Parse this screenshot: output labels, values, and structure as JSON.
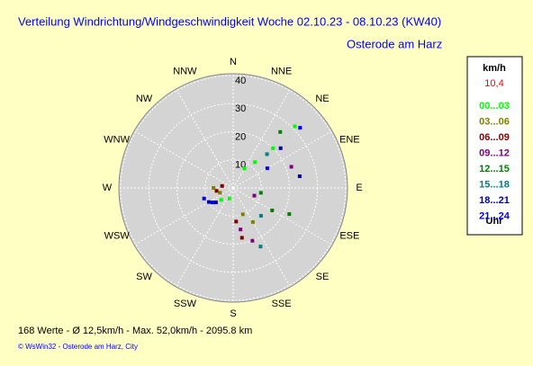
{
  "chart_data": {
    "type": "polar-scatter",
    "title": "Verteilung Windrichtung/Windgeschwindigkeit  Woche 02.10.23 - 08.10.23 (KW40)",
    "subtitle": "Osterode am Harz",
    "directions": [
      "N",
      "NNE",
      "NE",
      "ENE",
      "E",
      "ESE",
      "SE",
      "SSE",
      "S",
      "SSW",
      "SW",
      "WSW",
      "W",
      "WNW",
      "NW",
      "NNW"
    ],
    "rlim": [
      0,
      40
    ],
    "rticks": [
      10,
      20,
      30,
      40
    ],
    "legend": {
      "unit": "km/h",
      "current": "10,4",
      "footer": "Uhr"
    },
    "series": [
      {
        "name": "00...03",
        "color": "#00ff00",
        "x": [
          45,
          45,
          40,
          30,
          200,
          225
        ],
        "values": [
          31,
          20,
          12,
          8,
          4,
          6
        ]
      },
      {
        "name": "03...06",
        "color": "#808000",
        "x": [
          150,
          160,
          250,
          270
        ],
        "values": [
          14,
          10,
          5,
          7
        ]
      },
      {
        "name": "06...09",
        "color": "#800000",
        "x": [
          170,
          175,
          260,
          280
        ],
        "values": [
          18,
          12,
          6,
          4
        ]
      },
      {
        "name": "09...12",
        "color": "#800080",
        "x": [
          70,
          160,
          170,
          110
        ],
        "values": [
          22,
          20,
          15,
          8
        ]
      },
      {
        "name": "12...15",
        "color": "#008000",
        "x": [
          115,
          120,
          40,
          100
        ],
        "values": [
          22,
          16,
          26,
          10
        ]
      },
      {
        "name": "15...18",
        "color": "#008080",
        "x": [
          155,
          45,
          135
        ],
        "values": [
          23,
          17,
          14
        ]
      },
      {
        "name": "18...21",
        "color": "#0000a0",
        "x": [
          80,
          50,
          230,
          240
        ],
        "values": [
          24,
          22,
          8,
          10
        ]
      },
      {
        "name": "21...24",
        "color": "#0000ff",
        "x": [
          48,
          235,
          250,
          60
        ],
        "values": [
          32,
          9,
          11,
          14
        ]
      }
    ],
    "footer": {
      "stats": "168 Werte   -   Ø 12,5km/h   -   Max. 52,0km/h   -   2095.8 km",
      "credit": "© WsWin32  -  Osterode am Harz, City"
    }
  }
}
